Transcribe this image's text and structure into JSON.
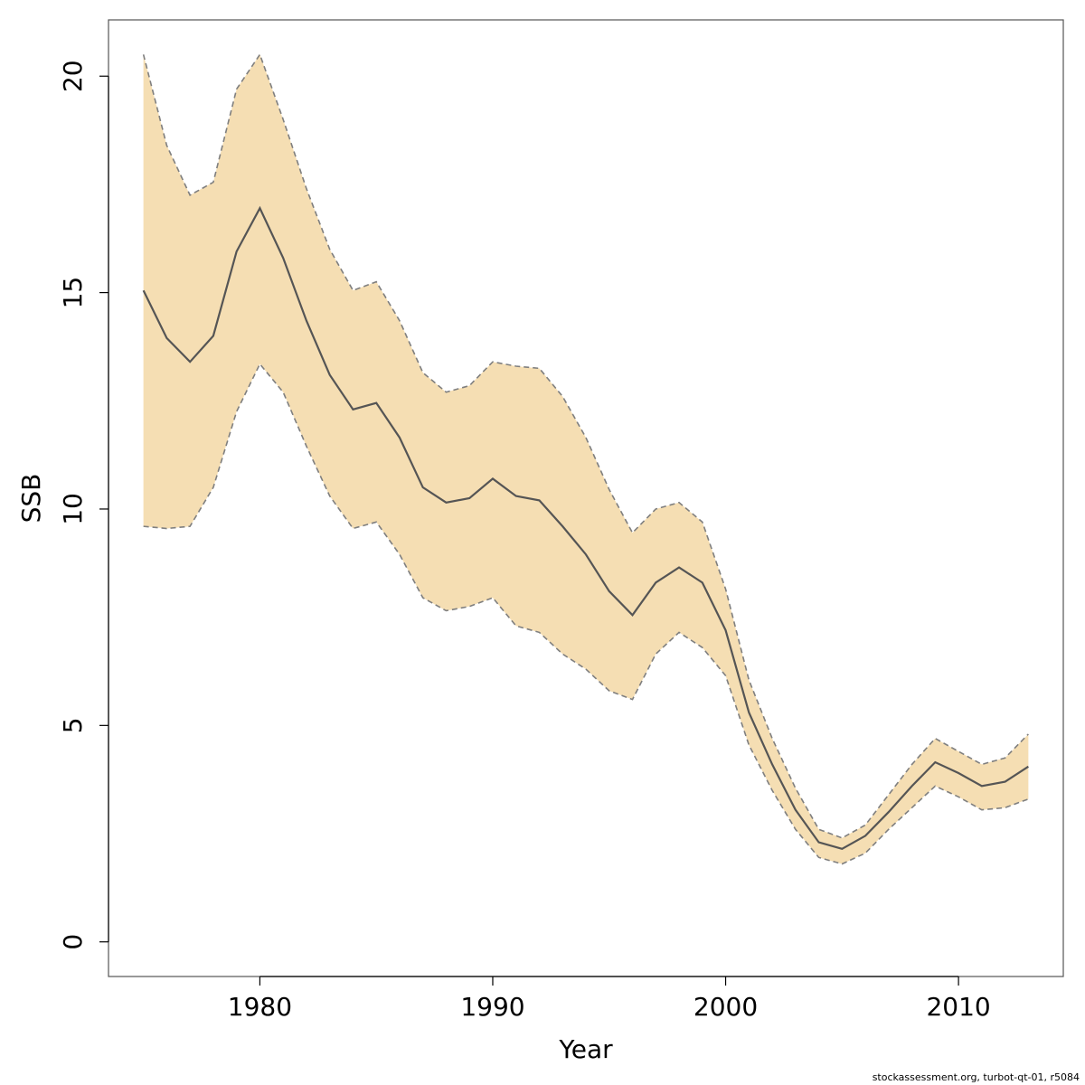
{
  "chart_data": {
    "type": "line",
    "xlabel": "Year",
    "ylabel": "SSB",
    "xlim": [
      1973.5,
      2014.5
    ],
    "ylim": [
      -0.8,
      21.3
    ],
    "xticks": [
      1980,
      1990,
      2000,
      2010
    ],
    "yticks": [
      0,
      5,
      10,
      15,
      20
    ],
    "x": [
      1975,
      1976,
      1977,
      1978,
      1979,
      1980,
      1981,
      1982,
      1983,
      1984,
      1985,
      1986,
      1987,
      1988,
      1989,
      1990,
      1991,
      1992,
      1993,
      1994,
      1995,
      1996,
      1997,
      1998,
      1999,
      2000,
      2001,
      2002,
      2003,
      2004,
      2005,
      2006,
      2007,
      2008,
      2009,
      2010,
      2011,
      2012,
      2013
    ],
    "series": [
      {
        "values": [
          15.05,
          13.95,
          13.4,
          14.0,
          15.95,
          16.95,
          15.8,
          14.35,
          13.1,
          12.3,
          12.45,
          11.65,
          10.5,
          10.15,
          10.25,
          10.7,
          10.3,
          10.2,
          9.6,
          8.95,
          8.1,
          7.55,
          8.3,
          8.65,
          8.3,
          7.2,
          5.3,
          4.1,
          3.05,
          2.3,
          2.15,
          2.45,
          3.0,
          3.6,
          4.15,
          3.9,
          3.6,
          3.7,
          4.05
        ]
      },
      {
        "values": [
          20.5,
          18.4,
          17.25,
          17.55,
          19.7,
          20.5,
          19.0,
          17.4,
          16.0,
          15.05,
          15.25,
          14.35,
          13.15,
          12.7,
          12.85,
          13.4,
          13.3,
          13.25,
          12.6,
          11.65,
          10.45,
          9.45,
          10.0,
          10.15,
          9.7,
          8.15,
          6.05,
          4.7,
          3.55,
          2.6,
          2.4,
          2.7,
          3.4,
          4.1,
          4.7,
          4.4,
          4.1,
          4.25,
          4.8
        ]
      },
      {
        "values": [
          9.6,
          9.55,
          9.6,
          10.5,
          12.25,
          13.35,
          12.7,
          11.45,
          10.3,
          9.55,
          9.7,
          8.95,
          7.95,
          7.65,
          7.75,
          7.95,
          7.3,
          7.15,
          6.65,
          6.3,
          5.8,
          5.6,
          6.65,
          7.15,
          6.8,
          6.15,
          4.55,
          3.5,
          2.6,
          1.95,
          1.8,
          2.05,
          2.6,
          3.1,
          3.6,
          3.35,
          3.05,
          3.1,
          3.3
        ]
      }
    ],
    "colors": {
      "band": "#F5DEB3",
      "line": "#555555",
      "bound": "#7f7f7f"
    },
    "grid": false,
    "legend": "none"
  },
  "footer": "stockassessment.org, turbot-qt-01, r5084"
}
